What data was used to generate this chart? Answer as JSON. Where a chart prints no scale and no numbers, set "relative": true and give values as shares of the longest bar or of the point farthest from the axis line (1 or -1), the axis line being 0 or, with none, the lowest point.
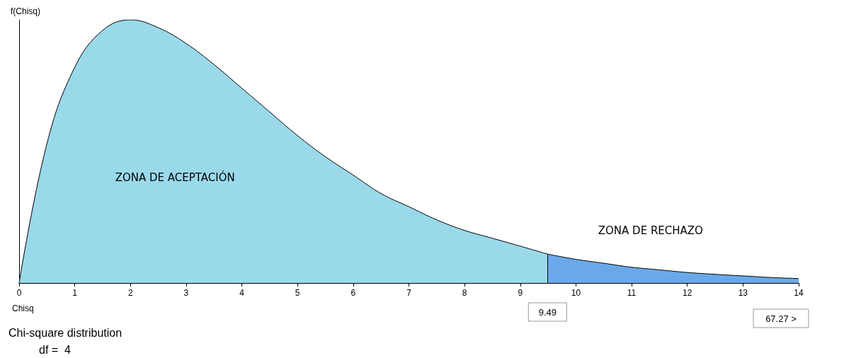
{
  "chart_data": {
    "type": "area",
    "relative": true,
    "xlabel": "Chisq",
    "ylabel": "f(Chisq)",
    "xlim": [
      0,
      14
    ],
    "xticks": [
      0,
      1,
      2,
      3,
      4,
      5,
      6,
      7,
      8,
      9,
      10,
      11,
      12,
      13,
      14
    ],
    "grid": false,
    "legend": false,
    "series": [
      {
        "name": "ZONA DE ACEPTACIÓN",
        "color": "#9ad9ea",
        "x": [
          0,
          0.5,
          1,
          1.5,
          2,
          2.5,
          3,
          3.5,
          4,
          4.5,
          5,
          5.5,
          6,
          6.5,
          7,
          7.5,
          8,
          8.5,
          9,
          9.49
        ],
        "values": [
          0,
          0.53,
          0.82,
          0.96,
          1,
          0.97,
          0.91,
          0.83,
          0.74,
          0.65,
          0.56,
          0.48,
          0.41,
          0.34,
          0.29,
          0.24,
          0.2,
          0.17,
          0.14,
          0.11
        ]
      },
      {
        "name": "ZONA DE RECHAZO",
        "color": "#6aa9e9",
        "x": [
          9.49,
          10,
          10.5,
          11,
          11.5,
          12,
          12.5,
          13,
          13.5,
          14
        ],
        "values": [
          0.11,
          0.09,
          0.075,
          0.06,
          0.05,
          0.04,
          0.033,
          0.027,
          0.021,
          0.017
        ]
      }
    ],
    "ref_lines": [
      {
        "axis": "x",
        "value": 9.49,
        "label": "9.49",
        "color": "#000000"
      }
    ],
    "annotations": [
      "67.27 >",
      "Chi-square distribution",
      "df =  4"
    ]
  }
}
